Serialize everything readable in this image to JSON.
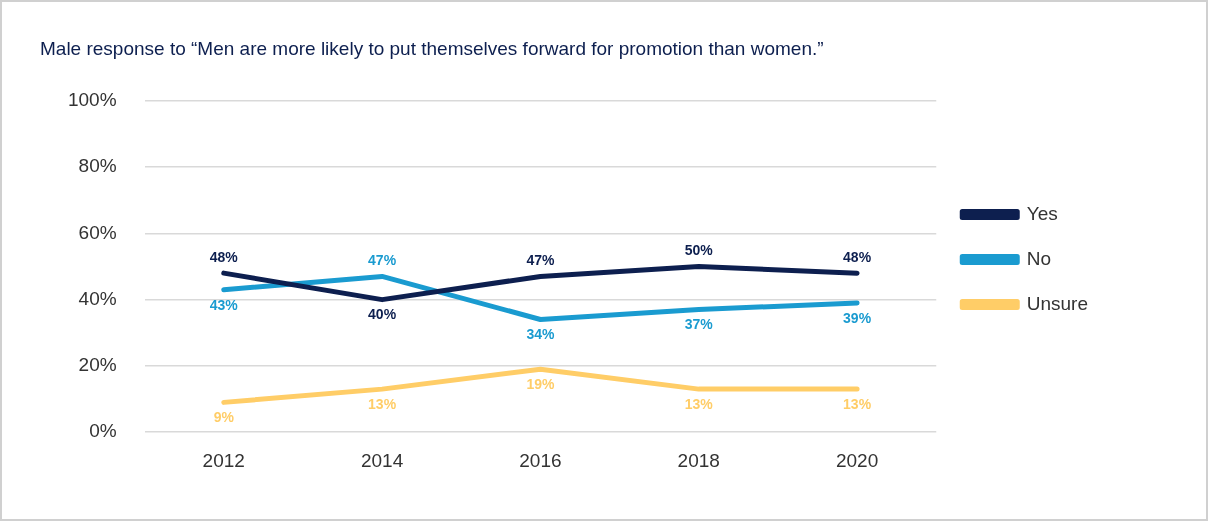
{
  "chart_data": {
    "type": "line",
    "title": "Male response to “Men are more likely to put themselves forward for promotion than women.”",
    "categories": [
      "2012",
      "2014",
      "2016",
      "2018",
      "2020"
    ],
    "series": [
      {
        "name": "Yes",
        "color": "#0d1f4f",
        "values": [
          48,
          40,
          47,
          50,
          48
        ],
        "value_labels": [
          "48%",
          "40%",
          "47%",
          "50%",
          "48%"
        ]
      },
      {
        "name": "No",
        "color": "#1a9bd0",
        "values": [
          43,
          47,
          34,
          37,
          39
        ],
        "value_labels": [
          "43%",
          "47%",
          "34%",
          "37%",
          "39%"
        ]
      },
      {
        "name": "Unsure",
        "color": "#ffcd67",
        "values": [
          9,
          13,
          19,
          13,
          13
        ],
        "value_labels": [
          "9%",
          "13%",
          "19%",
          "13%",
          "13%"
        ]
      }
    ],
    "ylim": [
      0,
      100
    ],
    "yticks": [
      {
        "value": 0,
        "label": "0%"
      },
      {
        "value": 20,
        "label": "20%"
      },
      {
        "value": 40,
        "label": "40%"
      },
      {
        "value": 60,
        "label": "60%"
      },
      {
        "value": 80,
        "label": "80%"
      },
      {
        "value": 100,
        "label": "100%"
      }
    ],
    "grid": "y",
    "legend": "right",
    "line_style": "solid"
  }
}
